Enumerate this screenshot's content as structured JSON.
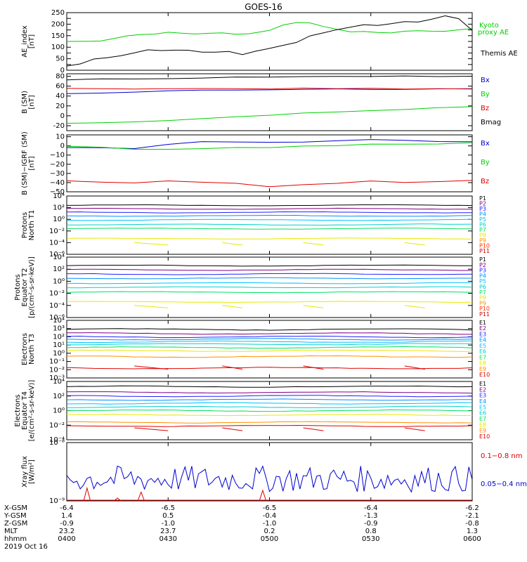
{
  "title": "GOES-16",
  "colors": {
    "black": "#000000",
    "red": "#e00000",
    "green": "#00d000",
    "blue": "#0000d0",
    "P": [
      "#000000",
      "#800080",
      "#2020ff",
      "#0090ff",
      "#00c0ff",
      "#00d0d0",
      "#00e060",
      "#e8e800",
      "#ff9000",
      "#ff3000",
      "#d00000"
    ],
    "E": [
      "#000000",
      "#800080",
      "#2020ff",
      "#0090ff",
      "#00c0ff",
      "#00d0d0",
      "#00e060",
      "#e8e800",
      "#ff9000",
      "#e00000"
    ]
  },
  "chart_data": [
    {
      "id": "ae",
      "type": "line",
      "ylabel": "AE_index\n[nT]",
      "ylim": [
        0,
        250
      ],
      "yticks": [
        0,
        25,
        50,
        75,
        100,
        125,
        150,
        175,
        200,
        225,
        250
      ],
      "yticklabels": [
        "0",
        "",
        "50",
        "",
        "100",
        "",
        "150",
        "",
        "200",
        "",
        "250"
      ],
      "series": [
        {
          "name": "Kyoto\nproxy AE",
          "color": "#00d000",
          "x": [
            0,
            6,
            10,
            14,
            18,
            22,
            26,
            30,
            34,
            38,
            42,
            46,
            50,
            54,
            58,
            60,
            64,
            68,
            72,
            76,
            80,
            84,
            88,
            92,
            96,
            100,
            104,
            108,
            112,
            116,
            120
          ],
          "y": [
            125,
            125,
            130,
            140,
            150,
            155,
            160,
            162,
            160,
            158,
            162,
            160,
            155,
            162,
            168,
            175,
            195,
            210,
            205,
            190,
            180,
            170,
            165,
            160,
            165,
            170,
            168,
            172,
            170,
            175,
            180
          ]
        },
        {
          "name": "Themis AE",
          "color": "#000000",
          "x": [
            0,
            4,
            8,
            12,
            16,
            20,
            24,
            28,
            32,
            36,
            40,
            44,
            48,
            52,
            56,
            60,
            64,
            68,
            72,
            76,
            80,
            84,
            88,
            92,
            96,
            100,
            104,
            108,
            112,
            116,
            120
          ],
          "y": [
            20,
            30,
            45,
            55,
            65,
            75,
            90,
            88,
            85,
            88,
            80,
            82,
            78,
            70,
            80,
            95,
            110,
            120,
            150,
            160,
            175,
            190,
            200,
            195,
            205,
            215,
            210,
            220,
            235,
            220,
            175
          ]
        }
      ],
      "legend": [
        "Kyoto proxy AE",
        "Themis AE"
      ]
    },
    {
      "id": "bsm",
      "type": "line",
      "ylabel": "B (SM)\n[nT]",
      "ylim": [
        -30,
        85
      ],
      "yticks": [
        -20,
        0,
        20,
        40,
        60,
        80
      ],
      "yticklabels": [
        "-20",
        "0",
        "20",
        "40",
        "60",
        "80"
      ],
      "series": [
        {
          "name": "Bx",
          "color": "#0000d0",
          "x": [
            0,
            10,
            20,
            30,
            40,
            50,
            60,
            70,
            80,
            90,
            100,
            110,
            120
          ],
          "y": [
            45,
            46,
            48,
            50,
            52,
            52,
            53,
            54,
            54,
            54,
            54,
            54,
            54
          ]
        },
        {
          "name": "By",
          "color": "#00d000",
          "x": [
            0,
            10,
            20,
            30,
            40,
            50,
            60,
            70,
            80,
            90,
            100,
            110,
            120
          ],
          "y": [
            -16,
            -15,
            -13,
            -10,
            -6,
            -2,
            2,
            6,
            8,
            11,
            13,
            16,
            18
          ]
        },
        {
          "name": "Bz",
          "color": "#e00000",
          "x": [
            0,
            10,
            20,
            30,
            40,
            50,
            60,
            70,
            80,
            90,
            100,
            110,
            120
          ],
          "y": [
            56,
            54,
            55,
            55,
            55,
            55,
            55,
            55,
            55,
            55,
            54,
            55,
            55
          ]
        },
        {
          "name": "Bmag",
          "color": "#000000",
          "x": [
            0,
            10,
            20,
            30,
            40,
            50,
            60,
            70,
            80,
            90,
            100,
            110,
            120
          ],
          "y": [
            72,
            74,
            75,
            76,
            77,
            78,
            78,
            79,
            79,
            80,
            80,
            80,
            81
          ]
        }
      ],
      "legend": [
        "Bx",
        "By",
        "Bz",
        "Bmag"
      ]
    },
    {
      "id": "bigrf",
      "type": "line",
      "ylabel": "B (SM)−IGRF (SM)\n[nT]",
      "ylim": [
        -50,
        12
      ],
      "yticks": [
        -50,
        -40,
        -30,
        -20,
        -10,
        0,
        10
      ],
      "yticklabels": [
        "−50",
        "−40",
        "−30",
        "−20",
        "−10",
        "0",
        "10"
      ],
      "series": [
        {
          "name": "Bx",
          "color": "#0000d0",
          "x": [
            0,
            10,
            20,
            30,
            40,
            50,
            60,
            70,
            80,
            90,
            100,
            110,
            120
          ],
          "y": [
            -1,
            -1,
            -3,
            1,
            4,
            5,
            4,
            5,
            6,
            7,
            7,
            5,
            5
          ]
        },
        {
          "name": "By",
          "color": "#00d000",
          "x": [
            0,
            10,
            20,
            30,
            40,
            50,
            60,
            70,
            80,
            90,
            100,
            110,
            120
          ],
          "y": [
            0,
            -2,
            -3,
            -3,
            -2,
            -2,
            -1,
            0,
            1,
            2,
            2,
            3,
            3
          ]
        },
        {
          "name": "Bz",
          "color": "#e00000",
          "x": [
            0,
            10,
            20,
            30,
            40,
            50,
            60,
            70,
            80,
            90,
            100,
            110,
            120
          ],
          "y": [
            -38,
            -40,
            -40,
            -39,
            -40,
            -41,
            -44,
            -42,
            -40,
            -39,
            -39,
            -38,
            -37
          ]
        }
      ],
      "legend": [
        "Bx",
        "By",
        "Bz"
      ]
    },
    {
      "id": "p1",
      "type": "line",
      "ylabel": "Protons\nNorth T1",
      "ylog": true,
      "ylim": [
        -6,
        4
      ],
      "yticks": [
        -6,
        -4,
        -2,
        0,
        2,
        4
      ],
      "yticklabels": [
        "10⁻⁶",
        "10⁻⁴",
        "10⁻²",
        "10⁰",
        "10²",
        "10⁴"
      ],
      "levels": [
        2.4,
        1.8,
        1.2,
        0.6,
        -0.1,
        -0.9,
        -1.6,
        -3.3
      ],
      "legend": [
        "P1",
        "P2",
        "P3",
        "P4",
        "P5",
        "P6",
        "P7",
        "P8",
        "P9",
        "P10",
        "P11"
      ]
    },
    {
      "id": "p2",
      "type": "line",
      "ylabel": "Protons\nEquator T2\n[p/(cm²-s-sr-keV)]",
      "ylog": true,
      "ylim": [
        -6,
        4
      ],
      "yticks": [
        -6,
        -4,
        -2,
        0,
        2,
        4
      ],
      "yticklabels": [
        "10⁻⁶",
        "10⁻⁴",
        "10⁻²",
        "10⁰",
        "10²",
        "10⁴"
      ],
      "levels": [
        2.6,
        1.9,
        1.2,
        0.5,
        -0.3,
        -1.0,
        -1.8,
        -3.4
      ],
      "legend": [
        "P1",
        "P2",
        "P3",
        "P4",
        "P5",
        "P6",
        "P7",
        "P8",
        "P9",
        "P10",
        "P11"
      ]
    },
    {
      "id": "e1",
      "type": "line",
      "ylabel": "Electrons\nNorth T3",
      "ylog": true,
      "ylim": [
        -3,
        4
      ],
      "yticks": [
        -3,
        -2,
        -1,
        0,
        1,
        2,
        3,
        4
      ],
      "yticklabels": [
        "10⁻³",
        "10⁻²",
        "10⁻¹",
        "10⁰",
        "10¹",
        "10²",
        "10³",
        "10⁴"
      ],
      "levels": [
        2.9,
        2.4,
        2.0,
        1.7,
        1.4,
        1.1,
        0.7,
        0.3,
        -0.4,
        -1.8
      ],
      "legend": [
        "E1",
        "E2",
        "E3",
        "E4",
        "E5",
        "E6",
        "E7",
        "E8",
        "E9",
        "E10"
      ]
    },
    {
      "id": "e2",
      "type": "line",
      "ylabel": "Electrons\nEquator T4\n[e/(cm²-s-sr-keV)]",
      "ylog": true,
      "ylim": [
        -4,
        4
      ],
      "yticks": [
        -4,
        -2,
        0,
        2,
        4
      ],
      "yticklabels": [
        "10⁻⁴",
        "10⁻²",
        "10⁰",
        "10²",
        "10⁴"
      ],
      "levels": [
        3.3,
        2.5,
        2.0,
        1.5,
        1.0,
        0.5,
        0.0,
        -0.6,
        -1.6,
        -2.1
      ],
      "legend": [
        "E1",
        "E2",
        "E3",
        "E4",
        "E5",
        "E6",
        "E7",
        "E8",
        "E9",
        "E10"
      ]
    },
    {
      "id": "xray",
      "type": "line",
      "ylabel": "Xray flux\n[W/m²]",
      "ylog": true,
      "ylim": [
        -9,
        -8
      ],
      "yticks": [
        -9,
        -8
      ],
      "yticklabels": [
        "10⁻⁹",
        "10⁻⁸"
      ],
      "series": [
        {
          "name": "0.1–0.8 nm",
          "color": "#e00000"
        },
        {
          "name": "0.05–0.4 nm",
          "color": "#0000d0"
        }
      ],
      "legend": [
        "0.1−0.8 nm",
        "0.05−0.4 nm"
      ]
    }
  ],
  "xaxis": {
    "row_labels": [
      "X-GSM",
      "Y-GSM",
      "Z-GSM",
      "MLT",
      "hhmm",
      "2019 Oct 16"
    ],
    "ticks": [
      {
        "x": 0,
        "vals": [
          "-6.4",
          "1.4",
          "-0.9",
          "23.2",
          "0400"
        ]
      },
      {
        "x": 30,
        "vals": [
          "-6.5",
          "0.5",
          "-1.0",
          "23.7",
          "0430"
        ]
      },
      {
        "x": 60,
        "vals": [
          "-6.5",
          "-0.4",
          "-1.0",
          "0.2",
          "0500"
        ]
      },
      {
        "x": 90,
        "vals": [
          "-6.4",
          "-1.3",
          "-0.9",
          "0.8",
          "0530"
        ]
      },
      {
        "x": 120,
        "vals": [
          "-6.2",
          "-2.1",
          "-0.8",
          "1.3",
          "0600"
        ]
      }
    ]
  }
}
